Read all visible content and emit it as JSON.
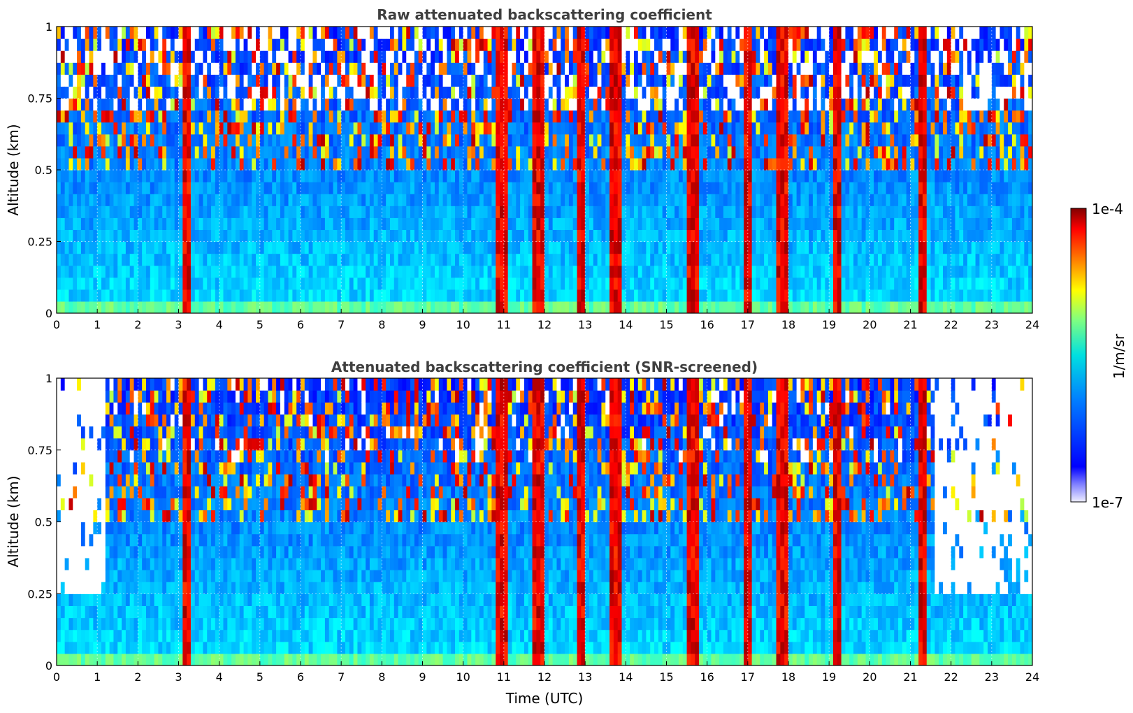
{
  "chart_data": [
    {
      "type": "heatmap",
      "title": "Raw attenuated backscattering coefficient",
      "xlabel": "",
      "ylabel": "Altitude (km)",
      "xlim": [
        0,
        24
      ],
      "ylim": [
        0,
        1
      ],
      "xticks": [
        "0",
        "1",
        "2",
        "3",
        "4",
        "5",
        "6",
        "7",
        "8",
        "9",
        "10",
        "11",
        "12",
        "13",
        "14",
        "15",
        "16",
        "17",
        "18",
        "19",
        "20",
        "21",
        "22",
        "23",
        "24"
      ],
      "yticks": [
        "0",
        "0.25",
        "0.5",
        "0.75",
        "1"
      ],
      "grid": true,
      "color_scale": "jet",
      "screened": false,
      "cloud_bands_utc": [
        {
          "start": 3.15,
          "end": 3.3,
          "level": 0.95
        },
        {
          "start": 10.9,
          "end": 11.0,
          "level": 0.9
        },
        {
          "start": 11.75,
          "end": 11.95,
          "level": 0.97
        },
        {
          "start": 12.85,
          "end": 12.95,
          "level": 0.9
        },
        {
          "start": 13.7,
          "end": 13.8,
          "level": 0.88
        },
        {
          "start": 15.55,
          "end": 15.75,
          "level": 0.75
        },
        {
          "start": 16.95,
          "end": 17.05,
          "level": 0.97
        },
        {
          "start": 17.8,
          "end": 17.95,
          "level": 0.9
        },
        {
          "start": 19.1,
          "end": 19.25,
          "level": 0.92
        },
        {
          "start": 21.25,
          "end": 21.4,
          "level": 0.95
        }
      ]
    },
    {
      "type": "heatmap",
      "title": "Attenuated backscattering coefficient (SNR-screened)",
      "xlabel": "Time (UTC)",
      "ylabel": "Altitude (km)",
      "xlim": [
        0,
        24
      ],
      "ylim": [
        0,
        1
      ],
      "xticks": [
        "0",
        "1",
        "2",
        "3",
        "4",
        "5",
        "6",
        "7",
        "8",
        "9",
        "10",
        "11",
        "12",
        "13",
        "14",
        "15",
        "16",
        "17",
        "18",
        "19",
        "20",
        "21",
        "22",
        "23",
        "24"
      ],
      "yticks": [
        "0",
        "0.25",
        "0.5",
        "0.75",
        "1"
      ],
      "grid": true,
      "color_scale": "jet",
      "screened": true
    }
  ],
  "colorbar": {
    "max_label": "1e-4",
    "min_label": "1e-7",
    "unit": "1/m/sr",
    "scale": "log"
  }
}
